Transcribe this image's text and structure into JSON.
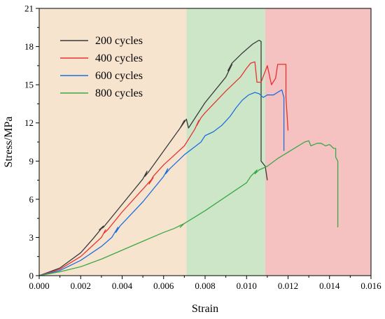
{
  "chart_data": {
    "type": "line",
    "title": "",
    "xlabel": "Strain",
    "ylabel": "Stress/MPa",
    "xlim": [
      0,
      0.016
    ],
    "ylim": [
      0,
      21
    ],
    "x_ticks": [
      0,
      0.002,
      0.004,
      0.006,
      0.008,
      0.01,
      0.012,
      0.014,
      0.016
    ],
    "x_tick_labels": [
      "0.000",
      "0.002",
      "0.004",
      "0.006",
      "0.008",
      "0.010",
      "0.012",
      "0.014",
      "0.016"
    ],
    "y_ticks": [
      0,
      3,
      6,
      9,
      12,
      15,
      18,
      21
    ],
    "y_tick_labels": [
      "0",
      "3",
      "6",
      "9",
      "12",
      "15",
      "18",
      "21"
    ],
    "grid": false,
    "legend_position": "top-left",
    "regions": [
      {
        "x_range": [
          0,
          0.0071
        ],
        "color": "#f6e4cf"
      },
      {
        "x_range": [
          0.0071,
          0.0109
        ],
        "color": "#cde6c8"
      },
      {
        "x_range": [
          0.0109,
          0.016
        ],
        "color": "#f5c1c1"
      }
    ],
    "series": [
      {
        "name": "200 cycles",
        "color": "#3a3a3a",
        "points": [
          [
            0,
            0
          ],
          [
            0.001,
            0.6
          ],
          [
            0.002,
            1.8
          ],
          [
            0.0026,
            2.9
          ],
          [
            0.0029,
            3.5
          ],
          [
            0.0031,
            3.9
          ],
          [
            0.0029,
            3.6
          ],
          [
            0.0031,
            3.8
          ],
          [
            0.004,
            5.6
          ],
          [
            0.005,
            7.6
          ],
          [
            0.0052,
            8.2
          ],
          [
            0.0051,
            7.8
          ],
          [
            0.0053,
            8.2
          ],
          [
            0.006,
            9.8
          ],
          [
            0.0068,
            11.6
          ],
          [
            0.007,
            12.2
          ],
          [
            0.0068,
            11.6
          ],
          [
            0.0071,
            12.3
          ],
          [
            0.0072,
            11.6
          ],
          [
            0.008,
            13.6
          ],
          [
            0.009,
            15.6
          ],
          [
            0.0093,
            16.6
          ],
          [
            0.0091,
            16.1
          ],
          [
            0.0093,
            16.7
          ],
          [
            0.0098,
            17.5
          ],
          [
            0.0103,
            18.2
          ],
          [
            0.0106,
            18.5
          ],
          [
            0.0107,
            18.4
          ],
          [
            0.0107,
            16.5
          ],
          [
            0.0107,
            12.0
          ],
          [
            0.0107,
            9.0
          ],
          [
            0.0109,
            8.6
          ],
          [
            0.011,
            7.5
          ]
        ]
      },
      {
        "name": "400 cycles",
        "color": "#e8322e",
        "points": [
          [
            0,
            0
          ],
          [
            0.001,
            0.5
          ],
          [
            0.002,
            1.5
          ],
          [
            0.003,
            3.0
          ],
          [
            0.0032,
            3.6
          ],
          [
            0.0031,
            3.3
          ],
          [
            0.0033,
            3.6
          ],
          [
            0.004,
            5.0
          ],
          [
            0.005,
            6.8
          ],
          [
            0.0055,
            7.7
          ],
          [
            0.0053,
            7.2
          ],
          [
            0.0055,
            7.8
          ],
          [
            0.006,
            8.7
          ],
          [
            0.007,
            10.2
          ],
          [
            0.0075,
            11.5
          ],
          [
            0.0077,
            12.2
          ],
          [
            0.0076,
            11.8
          ],
          [
            0.0078,
            12.4
          ],
          [
            0.008,
            12.8
          ],
          [
            0.009,
            14.5
          ],
          [
            0.0097,
            15.6
          ],
          [
            0.01,
            16.3
          ],
          [
            0.0102,
            16.7
          ],
          [
            0.0104,
            16.8
          ],
          [
            0.0105,
            15.2
          ],
          [
            0.0107,
            15.2
          ],
          [
            0.011,
            16.5
          ],
          [
            0.0112,
            15.0
          ],
          [
            0.0114,
            15.5
          ],
          [
            0.0115,
            16.6
          ],
          [
            0.0118,
            16.6
          ],
          [
            0.0119,
            16.6
          ],
          [
            0.0119,
            14.0
          ],
          [
            0.012,
            11.4
          ]
        ]
      },
      {
        "name": "600 cycles",
        "color": "#1f6fe0",
        "points": [
          [
            0,
            0
          ],
          [
            0.001,
            0.4
          ],
          [
            0.002,
            1.2
          ],
          [
            0.003,
            2.3
          ],
          [
            0.0035,
            3.0
          ],
          [
            0.0038,
            3.8
          ],
          [
            0.0037,
            3.4
          ],
          [
            0.0039,
            3.9
          ],
          [
            0.005,
            5.8
          ],
          [
            0.006,
            7.8
          ],
          [
            0.0062,
            8.4
          ],
          [
            0.0061,
            8.0
          ],
          [
            0.0063,
            8.4
          ],
          [
            0.007,
            9.5
          ],
          [
            0.0078,
            10.5
          ],
          [
            0.008,
            11.0
          ],
          [
            0.0084,
            11.3
          ],
          [
            0.0088,
            11.8
          ],
          [
            0.0092,
            12.5
          ],
          [
            0.0095,
            13.2
          ],
          [
            0.0098,
            13.8
          ],
          [
            0.0101,
            14.2
          ],
          [
            0.0104,
            14.4
          ],
          [
            0.0106,
            14.3
          ],
          [
            0.0108,
            14.0
          ],
          [
            0.011,
            14.2
          ],
          [
            0.0113,
            14.2
          ],
          [
            0.0116,
            14.5
          ],
          [
            0.0117,
            14.6
          ],
          [
            0.0118,
            14.0
          ],
          [
            0.0118,
            12.0
          ],
          [
            0.0118,
            9.8
          ]
        ]
      },
      {
        "name": "800 cycles",
        "color": "#3aa845",
        "points": [
          [
            0,
            0
          ],
          [
            0.001,
            0.3
          ],
          [
            0.002,
            0.7
          ],
          [
            0.003,
            1.3
          ],
          [
            0.004,
            2.0
          ],
          [
            0.005,
            2.7
          ],
          [
            0.006,
            3.4
          ],
          [
            0.0065,
            3.7
          ],
          [
            0.007,
            4.1
          ],
          [
            0.0068,
            3.8
          ],
          [
            0.007,
            4.1
          ],
          [
            0.008,
            5.1
          ],
          [
            0.009,
            6.2
          ],
          [
            0.01,
            7.3
          ],
          [
            0.0102,
            7.8
          ],
          [
            0.0105,
            8.3
          ],
          [
            0.0104,
            8.0
          ],
          [
            0.0106,
            8.3
          ],
          [
            0.011,
            8.6
          ],
          [
            0.0115,
            9.2
          ],
          [
            0.012,
            9.7
          ],
          [
            0.0124,
            10.1
          ],
          [
            0.0128,
            10.5
          ],
          [
            0.013,
            10.6
          ],
          [
            0.0131,
            10.2
          ],
          [
            0.0134,
            10.4
          ],
          [
            0.0136,
            10.4
          ],
          [
            0.0138,
            10.2
          ],
          [
            0.014,
            10.3
          ],
          [
            0.0142,
            10.0
          ],
          [
            0.0143,
            10.0
          ],
          [
            0.0143,
            9.3
          ],
          [
            0.0144,
            9.0
          ],
          [
            0.0144,
            6.5
          ],
          [
            0.0144,
            3.8
          ]
        ]
      }
    ]
  }
}
